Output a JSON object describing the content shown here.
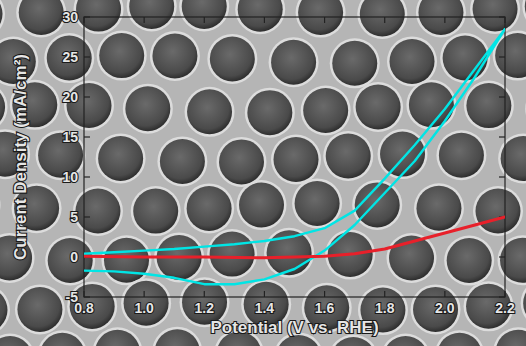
{
  "chart_data": {
    "type": "line",
    "xlabel": "Potential (V vs. RHE)",
    "ylabel": "Current Density (mA/cm²)",
    "xlim": [
      0.8,
      2.2
    ],
    "xticks": [
      0.8,
      {
        "value": 1,
        "label": "1.0"
      },
      1.2,
      1.4,
      1.6,
      1.8,
      {
        "value": 2,
        "label": "2.0"
      },
      2.2
    ],
    "ylim": [
      -5,
      30
    ],
    "yticks": [
      -5,
      0,
      5,
      10,
      15,
      20,
      25,
      30
    ],
    "series": [
      {
        "color": "#00e5e5",
        "x": [
          0.8,
          0.9,
          1.0,
          1.1,
          1.2,
          1.3,
          1.4,
          1.5,
          1.6,
          1.7,
          1.8,
          1.9,
          2.0,
          2.1,
          2.2,
          2.1,
          2.0,
          1.9,
          1.8,
          1.7,
          1.6,
          1.5,
          1.4,
          1.3,
          1.2,
          1.1,
          1.0,
          0.9,
          0.8
        ],
        "values": [
          0.4,
          0.6,
          0.8,
          1.0,
          1.3,
          1.6,
          2.0,
          2.6,
          3.6,
          5.8,
          9.8,
          14.0,
          18.5,
          23.5,
          28.5,
          22.5,
          17.0,
          12.0,
          8.0,
          4.0,
          0.8,
          -1.5,
          -2.8,
          -3.4,
          -3.4,
          -2.6,
          -2.1,
          -1.8,
          -1.7
        ]
      },
      {
        "color": "#e8202a",
        "x": [
          0.8,
          1.0,
          1.2,
          1.4,
          1.5,
          1.6,
          1.7,
          1.8,
          1.9,
          2.0,
          2.1,
          2.2
        ],
        "values": [
          0.1,
          0.0,
          0.0,
          -0.1,
          0.0,
          0.1,
          0.4,
          1.0,
          2.0,
          3.0,
          4.0,
          5.0
        ]
      }
    ]
  }
}
